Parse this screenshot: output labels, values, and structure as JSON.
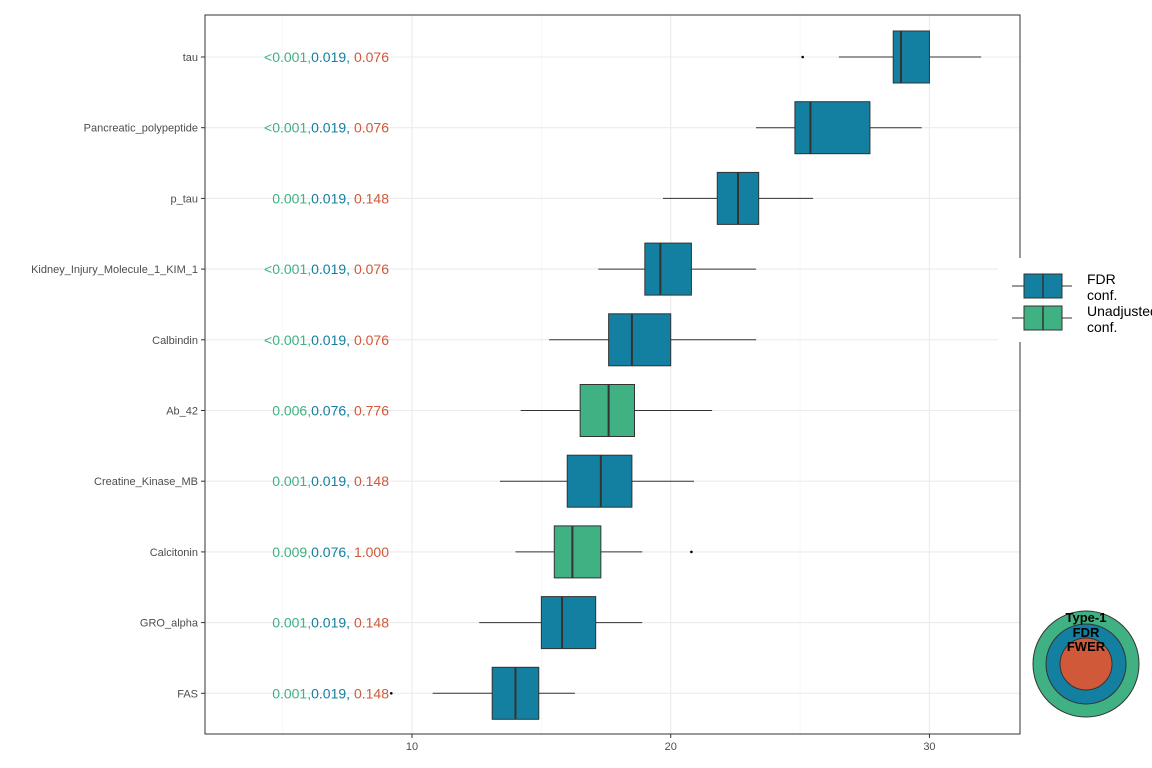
{
  "chart_data": {
    "type": "boxplot",
    "xlim": [
      2,
      33.5
    ],
    "x_ticks": [
      10,
      20,
      30
    ],
    "grid": true,
    "legend_position": "right",
    "colors": {
      "fdr": "#1380A1",
      "unadjusted": "#40B183",
      "fwer": "#D0593A"
    },
    "categories": [
      {
        "label": "tau",
        "p_unadj": "<0.001",
        "p_fdr": "0.019",
        "p_fwer": "0.076",
        "group": "fdr",
        "whisker_low": 26.5,
        "q1": 28.6,
        "median": 28.9,
        "q3": 30.0,
        "whisker_high": 32.0,
        "outliers": [
          25.1
        ]
      },
      {
        "label": "Pancreatic_polypeptide",
        "p_unadj": "<0.001",
        "p_fdr": "0.019",
        "p_fwer": "0.076",
        "group": "fdr",
        "whisker_low": 23.3,
        "q1": 24.8,
        "median": 25.4,
        "q3": 27.7,
        "whisker_high": 29.7,
        "outliers": []
      },
      {
        "label": "p_tau",
        "p_unadj": "0.001",
        "p_fdr": "0.019",
        "p_fwer": "0.148",
        "group": "fdr",
        "whisker_low": 19.7,
        "q1": 21.8,
        "median": 22.6,
        "q3": 23.4,
        "whisker_high": 25.5,
        "outliers": []
      },
      {
        "label": "Kidney_Injury_Molecule_1_KIM_1",
        "p_unadj": "<0.001",
        "p_fdr": "0.019",
        "p_fwer": "0.076",
        "group": "fdr",
        "whisker_low": 17.2,
        "q1": 19.0,
        "median": 19.6,
        "q3": 20.8,
        "whisker_high": 23.3,
        "outliers": []
      },
      {
        "label": "Calbindin",
        "p_unadj": "<0.001",
        "p_fdr": "0.019",
        "p_fwer": "0.076",
        "group": "fdr",
        "whisker_low": 15.3,
        "q1": 17.6,
        "median": 18.5,
        "q3": 20.0,
        "whisker_high": 23.3,
        "outliers": []
      },
      {
        "label": "Ab_42",
        "p_unadj": "0.006",
        "p_fdr": "0.076",
        "p_fwer": "0.776",
        "group": "unadjusted",
        "whisker_low": 14.2,
        "q1": 16.5,
        "median": 17.6,
        "q3": 18.6,
        "whisker_high": 21.6,
        "outliers": []
      },
      {
        "label": "Creatine_Kinase_MB",
        "p_unadj": "0.001",
        "p_fdr": "0.019",
        "p_fwer": "0.148",
        "group": "fdr",
        "whisker_low": 13.4,
        "q1": 16.0,
        "median": 17.3,
        "q3": 18.5,
        "whisker_high": 20.9,
        "outliers": []
      },
      {
        "label": "Calcitonin",
        "p_unadj": "0.009",
        "p_fdr": "0.076",
        "p_fwer": "1.000",
        "group": "unadjusted",
        "whisker_low": 14.0,
        "q1": 15.5,
        "median": 16.2,
        "q3": 17.3,
        "whisker_high": 18.9,
        "outliers": [
          20.8
        ]
      },
      {
        "label": "GRO_alpha",
        "p_unadj": "0.001",
        "p_fdr": "0.019",
        "p_fwer": "0.148",
        "group": "fdr",
        "whisker_low": 12.6,
        "q1": 15.0,
        "median": 15.8,
        "q3": 17.1,
        "whisker_high": 18.9,
        "outliers": []
      },
      {
        "label": "FAS",
        "p_unadj": "0.001",
        "p_fdr": "0.019",
        "p_fwer": "0.148",
        "group": "fdr",
        "whisker_low": 10.8,
        "q1": 13.1,
        "median": 14.0,
        "q3": 14.9,
        "whisker_high": 16.3,
        "outliers": [
          9.2
        ]
      }
    ],
    "legend": [
      {
        "key": "fdr",
        "line1": "FDR",
        "line2": "conf."
      },
      {
        "key": "unadjusted",
        "line1": "Unadjusted",
        "line2": "conf."
      }
    ],
    "inset": {
      "labels": [
        "Type-1",
        "FDR",
        "FWER"
      ]
    }
  }
}
